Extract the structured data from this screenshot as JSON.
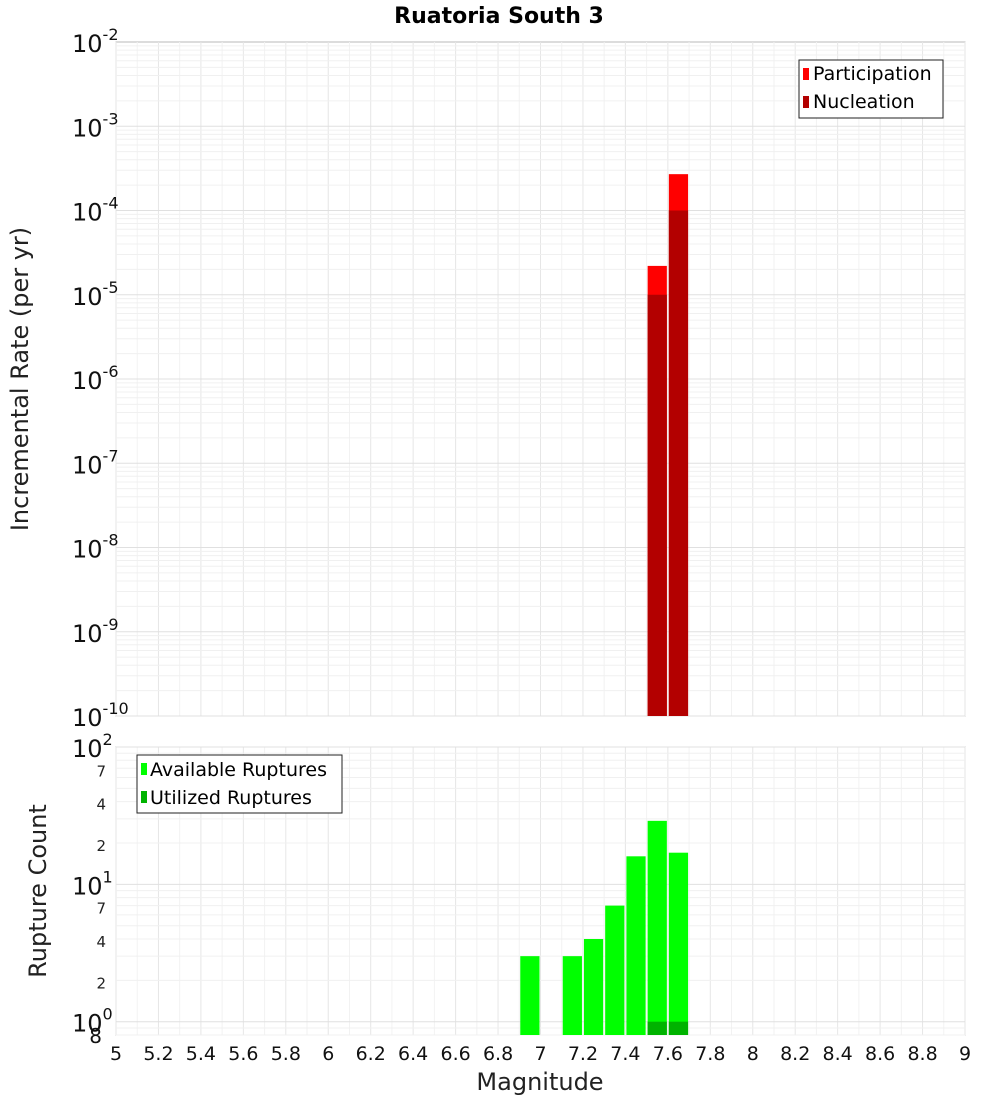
{
  "chart_data": [
    {
      "type": "bar",
      "title": "Ruatoria South 3",
      "xlabel": "",
      "ylabel": "Incremental Rate (per yr)",
      "yscale": "log",
      "ylim": [
        1e-10,
        0.01
      ],
      "xlim": [
        5,
        9
      ],
      "bar_width": 0.1,
      "grid": true,
      "legend_position": "top-right",
      "y_tick_bases": [
        "10",
        "10",
        "10",
        "10",
        "10",
        "10",
        "10",
        "10",
        "10"
      ],
      "y_tick_exponents": [
        "-10",
        "-9",
        "-8",
        "-7",
        "-6",
        "-5",
        "-4",
        "-3",
        "-2"
      ],
      "series": [
        {
          "name": "Participation",
          "color": "#ff0000",
          "x": [
            7.55,
            7.65
          ],
          "values": [
            2.2e-05,
            0.00027
          ]
        },
        {
          "name": "Nucleation",
          "color": "#b30000",
          "x": [
            7.55,
            7.65
          ],
          "values": [
            1e-05,
            0.0001
          ]
        }
      ]
    },
    {
      "type": "bar",
      "title": "",
      "xlabel": "Magnitude",
      "ylabel": "Rupture Count",
      "yscale": "log",
      "ylim": [
        0.8,
        100
      ],
      "xlim": [
        5,
        9
      ],
      "bar_width": 0.1,
      "grid": true,
      "legend_position": "top-left",
      "x_ticks": [
        "5",
        "5.2",
        "5.4",
        "5.6",
        "5.8",
        "6",
        "6.2",
        "6.4",
        "6.6",
        "6.8",
        "7",
        "7.2",
        "7.4",
        "7.6",
        "7.8",
        "8",
        "8.2",
        "8.4",
        "8.6",
        "8.8",
        "9"
      ],
      "y_tick_bases": [
        "10",
        "10",
        "10"
      ],
      "y_tick_exponents": [
        "0",
        "1",
        "2"
      ],
      "y_minor_ticks": [
        "8",
        "2",
        "4",
        "7",
        "2",
        "4",
        "7"
      ],
      "series": [
        {
          "name": "Available Ruptures",
          "color": "#00ff00",
          "x": [
            6.95,
            7.15,
            7.25,
            7.35,
            7.45,
            7.55,
            7.65
          ],
          "values": [
            3,
            3,
            4,
            7,
            16,
            29,
            17
          ]
        },
        {
          "name": "Utilized Ruptures",
          "color": "#00b300",
          "x": [
            7.55,
            7.65
          ],
          "values": [
            1,
            1
          ]
        }
      ]
    }
  ]
}
